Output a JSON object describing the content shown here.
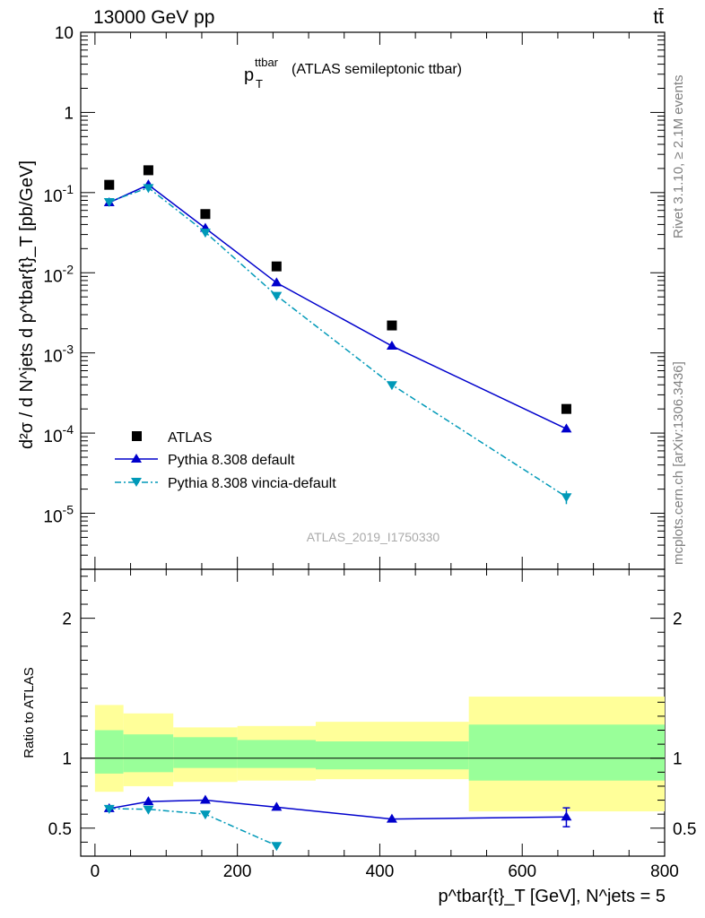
{
  "header": {
    "energy_label": "13000 GeV pp",
    "process_label": "tt̄"
  },
  "plot": {
    "title_main": "p",
    "title_sub": "T",
    "title_sup": "ttbar",
    "title_rest": "(ATLAS semileptonic ttbar)",
    "watermark": "ATLAS_2019_I1750330",
    "side_text_top": "Rivet 3.1.10, ≥ 2.1M events",
    "side_text_bottom": "mcplots.cern.ch [arXiv:1306.3436]"
  },
  "axes": {
    "ylabel_main": "d²σ / d N^jets d p^tbar{t}_T [pb/GeV]",
    "ylabel_ratio": "Ratio to ATLAS",
    "xlabel": "p^tbar{t}_T [GeV], N^jets = 5"
  },
  "legend": {
    "entries": [
      "ATLAS",
      "Pythia 8.308 default",
      "Pythia 8.308 vincia-default"
    ]
  },
  "colors": {
    "data": "#000000",
    "pythia_default": "#0000cc",
    "pythia_vincia": "#0099b8",
    "band_outer": "#ffff99",
    "band_inner": "#99ff99"
  },
  "chart_data": {
    "type": "scatter",
    "x_unit": "GeV",
    "xlim": [
      -20,
      800
    ],
    "ylim_main": [
      2e-06,
      10
    ],
    "ylog": true,
    "ylim_ratio": [
      0.3,
      2.35
    ],
    "x_ticks": [
      0,
      200,
      400,
      600,
      800
    ],
    "y_ticks_main": [
      "10^-5",
      "10^-4",
      "10^-3",
      "10^-2",
      "10^-1",
      "1",
      "10"
    ],
    "y_ticks_ratio": [
      0.5,
      1,
      2
    ],
    "bins": [
      [
        0,
        40
      ],
      [
        40,
        110
      ],
      [
        110,
        200
      ],
      [
        200,
        310
      ],
      [
        310,
        525
      ],
      [
        525,
        800
      ]
    ],
    "x": [
      20,
      75,
      155,
      255,
      417,
      662
    ],
    "series": [
      {
        "name": "ATLAS",
        "values": [
          0.125,
          0.19,
          0.054,
          0.012,
          0.0022,
          0.0002
        ]
      },
      {
        "name": "Pythia 8.308 default",
        "values": [
          0.075,
          0.125,
          0.036,
          0.0075,
          0.00122,
          0.000113
        ]
      },
      {
        "name": "Pythia 8.308 vincia-default",
        "values": [
          0.077,
          0.115,
          0.032,
          0.0052,
          0.0004,
          1.6e-05
        ]
      }
    ],
    "ratio": {
      "band_outer": [
        [
          0.76,
          1.38
        ],
        [
          0.8,
          1.32
        ],
        [
          0.83,
          1.22
        ],
        [
          0.84,
          1.23
        ],
        [
          0.85,
          1.26
        ],
        [
          0.62,
          1.44
        ]
      ],
      "band_inner": [
        [
          0.89,
          1.2
        ],
        [
          0.9,
          1.17
        ],
        [
          0.93,
          1.15
        ],
        [
          0.93,
          1.13
        ],
        [
          0.92,
          1.12
        ],
        [
          0.84,
          1.24
        ]
      ],
      "series": [
        {
          "name": "Pythia 8.308 default",
          "values": [
            0.64,
            0.69,
            0.7,
            0.65,
            0.565,
            0.58
          ]
        },
        {
          "name": "Pythia 8.308 vincia-default",
          "values": [
            0.64,
            0.635,
            0.6,
            0.375
          ]
        }
      ]
    }
  }
}
